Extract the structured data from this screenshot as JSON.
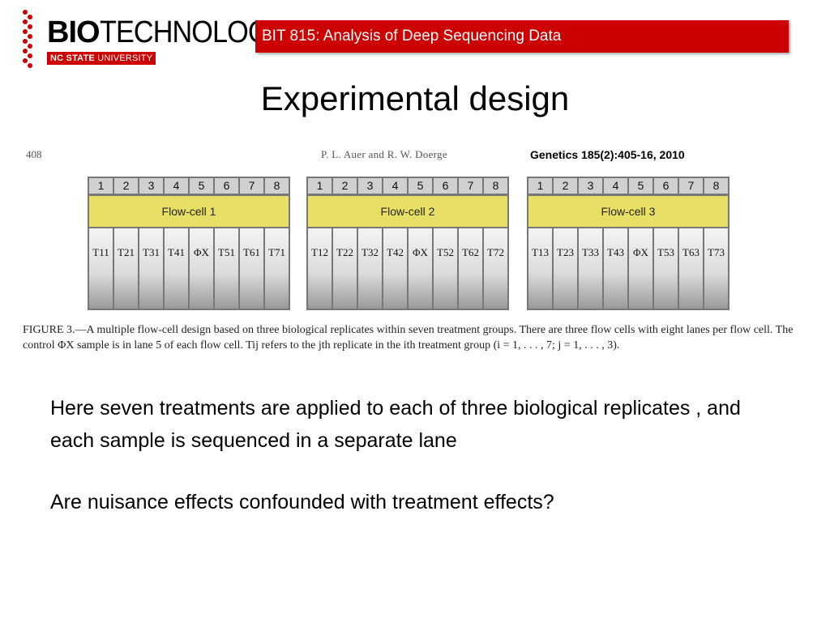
{
  "header": {
    "logo_bio": "BIO",
    "logo_tech": "TECHNOLOGY",
    "logo_nc": "NC STATE",
    "logo_univ": "UNIVERSITY",
    "course": "BIT 815: Analysis of Deep Sequencing Data"
  },
  "title": "Experimental design",
  "figure": {
    "page_num": "408",
    "authors": "P. L. Auer and R. W. Doerge",
    "citation": "Genetics 185(2):405-16, 2010",
    "lane_numbers": [
      "1",
      "2",
      "3",
      "4",
      "5",
      "6",
      "7",
      "8"
    ],
    "flowcells": [
      {
        "label": "Flow-cell 1",
        "lanes": [
          "T11",
          "T21",
          "T31",
          "T41",
          "ΦX",
          "T51",
          "T61",
          "T71"
        ]
      },
      {
        "label": "Flow-cell 2",
        "lanes": [
          "T12",
          "T22",
          "T32",
          "T42",
          "ΦX",
          "T52",
          "T62",
          "T72"
        ]
      },
      {
        "label": "Flow-cell 3",
        "lanes": [
          "T13",
          "T23",
          "T33",
          "T43",
          "ΦX",
          "T53",
          "T63",
          "T73"
        ]
      }
    ],
    "caption": "FIGURE 3.—A multiple flow-cell design based on three biological replicates within seven treatment groups. There are three flow cells with eight lanes per flow cell. The control ΦX sample is in lane 5 of each flow cell. Tij refers to the jth replicate in the ith treatment group (i = 1, . . . , 7; j = 1, . . . , 3)."
  },
  "body": {
    "text": "Here seven treatments are applied to each of three biological replicates , and each sample is sequenced in a separate lane",
    "question": "Are nuisance effects confounded with treatment effects?"
  }
}
